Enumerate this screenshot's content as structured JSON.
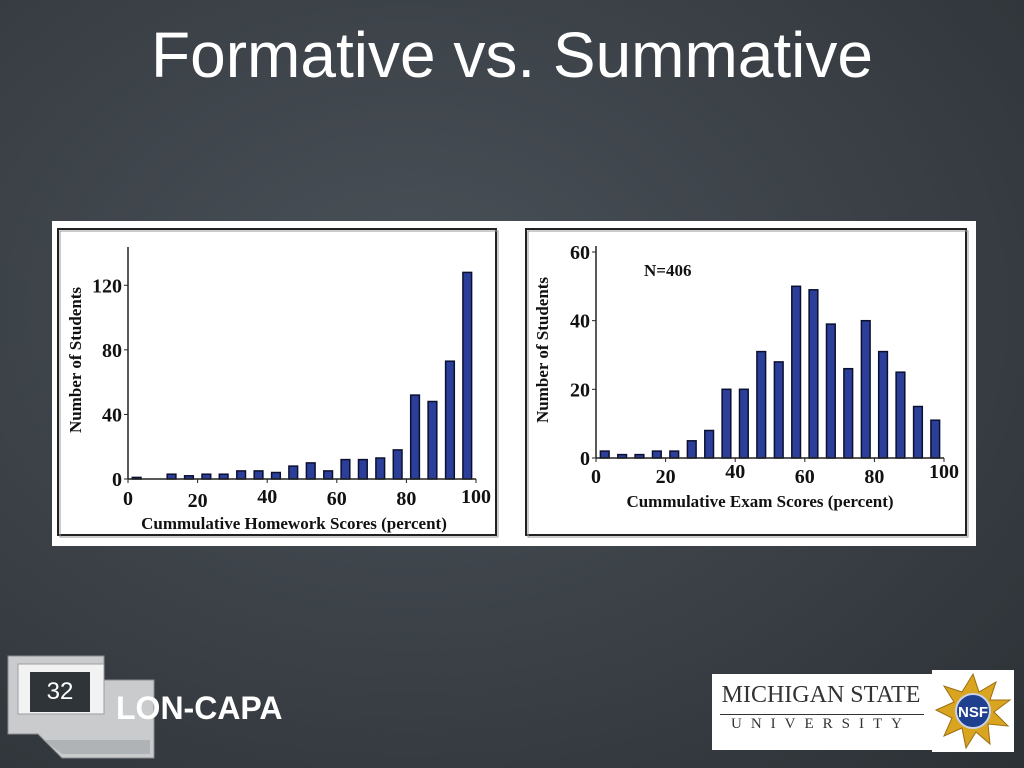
{
  "slide": {
    "title": "Formative vs. Summative",
    "number": "32",
    "brand": "LON-CAPA",
    "university_line1": "MICHIGAN STATE",
    "university_line2": "UNIVERSITY",
    "nsf_logo_text": "NSF"
  },
  "colors": {
    "bar_fill": "#2b3f9a",
    "bar_stroke": "#0c1030",
    "background": "#3a4046"
  },
  "icons": [
    "nsf-logo-icon",
    "msu-wordmark",
    "slide-number-frame"
  ],
  "chart_data": [
    {
      "type": "bar",
      "title": "",
      "xlabel": "Cummulative Homework Scores (percent)",
      "ylabel": "Number of Students",
      "xlim": [
        0,
        100
      ],
      "ylim": [
        0,
        140
      ],
      "xticks": [
        0,
        20,
        40,
        60,
        80,
        100
      ],
      "yticks": [
        0,
        40,
        80,
        120
      ],
      "grid": false,
      "x": [
        2.5,
        12.5,
        17.5,
        22.5,
        27.5,
        32.5,
        37.5,
        42.5,
        47.5,
        52.5,
        57.5,
        62.5,
        67.5,
        72.5,
        77.5,
        82.5,
        87.5,
        92.5,
        97.5
      ],
      "values": [
        1,
        3,
        2,
        3,
        3,
        5,
        5,
        4,
        8,
        10,
        5,
        12,
        12,
        13,
        18,
        52,
        48,
        73,
        128
      ]
    },
    {
      "type": "bar",
      "title": "",
      "xlabel": "Cummulative Exam Scores (percent)",
      "ylabel": "Number of Students",
      "annotation": "N=406",
      "xlim": [
        0,
        100
      ],
      "ylim": [
        0,
        60
      ],
      "xticks": [
        0,
        20,
        40,
        60,
        80,
        100
      ],
      "yticks": [
        0,
        20,
        40,
        60
      ],
      "grid": false,
      "x": [
        2.5,
        7.5,
        12.5,
        17.5,
        22.5,
        27.5,
        32.5,
        37.5,
        42.5,
        47.5,
        52.5,
        57.5,
        62.5,
        67.5,
        72.5,
        77.5,
        82.5,
        87.5,
        92.5,
        97.5
      ],
      "values": [
        2,
        1,
        1,
        2,
        2,
        5,
        8,
        20,
        20,
        31,
        28,
        50,
        49,
        39,
        26,
        40,
        31,
        25,
        15,
        11
      ]
    }
  ]
}
